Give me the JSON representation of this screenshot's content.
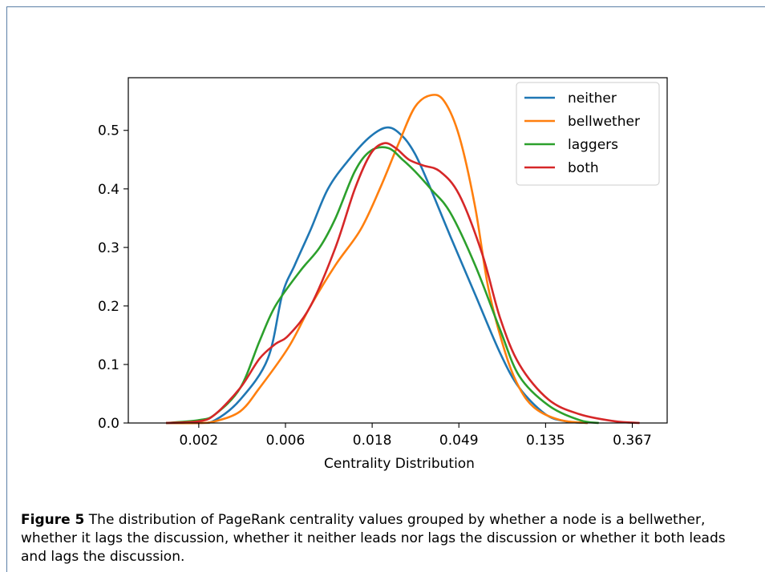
{
  "chart_data": {
    "type": "line",
    "xlabel": "Centrality Distribution",
    "ylabel": "",
    "x_scale": "log",
    "xlim": [
      0.0011,
      0.55
    ],
    "ylim": [
      0.0,
      0.59
    ],
    "x_ticks": [
      "0.002",
      "0.006",
      "0.018",
      "0.049",
      "0.135",
      "0.367"
    ],
    "x_tick_values": [
      0.002479,
      0.006738,
      0.018316,
      0.049787,
      0.135335,
      0.367879
    ],
    "y_ticks": [
      "0.0",
      "0.1",
      "0.2",
      "0.3",
      "0.4",
      "0.5"
    ],
    "y_tick_values": [
      0.0,
      0.1,
      0.2,
      0.3,
      0.4,
      0.5
    ],
    "grid": false,
    "legend": "top-right",
    "series": [
      {
        "name": "neither",
        "color": "#1f77b4",
        "x": [
          0.0017,
          0.0025,
          0.003,
          0.004,
          0.0055,
          0.0065,
          0.0075,
          0.009,
          0.011,
          0.014,
          0.018,
          0.022,
          0.026,
          0.03,
          0.035,
          0.045,
          0.06,
          0.08,
          0.1,
          0.135,
          0.17,
          0.22
        ],
        "y": [
          0.0,
          0.0,
          0.005,
          0.04,
          0.11,
          0.22,
          0.27,
          0.33,
          0.4,
          0.45,
          0.49,
          0.505,
          0.49,
          0.46,
          0.41,
          0.32,
          0.22,
          0.12,
          0.06,
          0.015,
          0.003,
          0.0
        ]
      },
      {
        "name": "bellwether",
        "color": "#ff7f0e",
        "x": [
          0.0017,
          0.0025,
          0.003,
          0.004,
          0.005,
          0.007,
          0.009,
          0.012,
          0.016,
          0.02,
          0.025,
          0.03,
          0.036,
          0.042,
          0.05,
          0.06,
          0.07,
          0.085,
          0.1,
          0.12,
          0.16,
          0.22
        ],
        "y": [
          0.0,
          0.0,
          0.003,
          0.02,
          0.06,
          0.13,
          0.2,
          0.27,
          0.33,
          0.4,
          0.48,
          0.54,
          0.56,
          0.55,
          0.49,
          0.37,
          0.23,
          0.12,
          0.06,
          0.025,
          0.005,
          0.0
        ]
      },
      {
        "name": "laggers",
        "color": "#2ca02c",
        "x": [
          0.0017,
          0.0025,
          0.003,
          0.004,
          0.005,
          0.006,
          0.008,
          0.01,
          0.012,
          0.015,
          0.018,
          0.022,
          0.026,
          0.03,
          0.036,
          0.045,
          0.06,
          0.08,
          0.1,
          0.14,
          0.2,
          0.25
        ],
        "y": [
          0.0,
          0.005,
          0.015,
          0.06,
          0.14,
          0.2,
          0.26,
          0.3,
          0.35,
          0.43,
          0.465,
          0.47,
          0.45,
          0.43,
          0.4,
          0.36,
          0.27,
          0.16,
          0.08,
          0.03,
          0.005,
          0.0
        ]
      },
      {
        "name": "both",
        "color": "#d62728",
        "x": [
          0.0017,
          0.0025,
          0.003,
          0.004,
          0.005,
          0.006,
          0.007,
          0.009,
          0.012,
          0.015,
          0.018,
          0.021,
          0.024,
          0.028,
          0.033,
          0.04,
          0.05,
          0.065,
          0.08,
          0.1,
          0.14,
          0.2,
          0.3,
          0.4
        ],
        "y": [
          0.0,
          0.003,
          0.015,
          0.06,
          0.11,
          0.135,
          0.15,
          0.2,
          0.3,
          0.4,
          0.46,
          0.478,
          0.47,
          0.45,
          0.44,
          0.43,
          0.39,
          0.29,
          0.18,
          0.1,
          0.04,
          0.015,
          0.003,
          0.0
        ]
      }
    ]
  },
  "caption": {
    "label": "Figure 5",
    "text": "The distribution of PageRank centrality values grouped by whether a node is a bellwether, whether it lags the discussion, whether it neither leads nor lags the discussion or whether it both leads and lags the discussion."
  }
}
